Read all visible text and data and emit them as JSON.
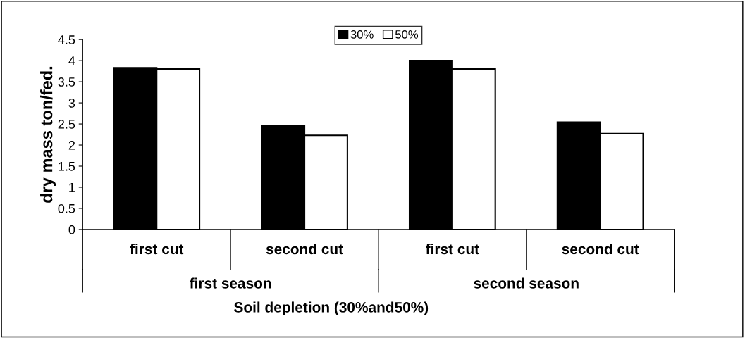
{
  "chart_data": {
    "type": "bar",
    "xlabel": "Soil depletion (30%and50%)",
    "ylabel": "dry mass ton/fed.",
    "categories": [
      "first cut",
      "second cut",
      "first cut",
      "second cut"
    ],
    "series": [
      {
        "name": "30%",
        "color": "#000000",
        "values": [
          3.83,
          2.45,
          4.0,
          2.54
        ]
      },
      {
        "name": "50%",
        "color": "#ffffff",
        "values": [
          3.8,
          2.23,
          3.8,
          2.27
        ]
      }
    ],
    "annotations": [
      "first season",
      "second season"
    ],
    "ylim": [
      0,
      4.5
    ],
    "yticks": [
      0,
      0.5,
      1,
      1.5,
      2,
      2.5,
      3,
      3.5,
      4,
      4.5
    ],
    "grid": false,
    "legend": "top"
  }
}
